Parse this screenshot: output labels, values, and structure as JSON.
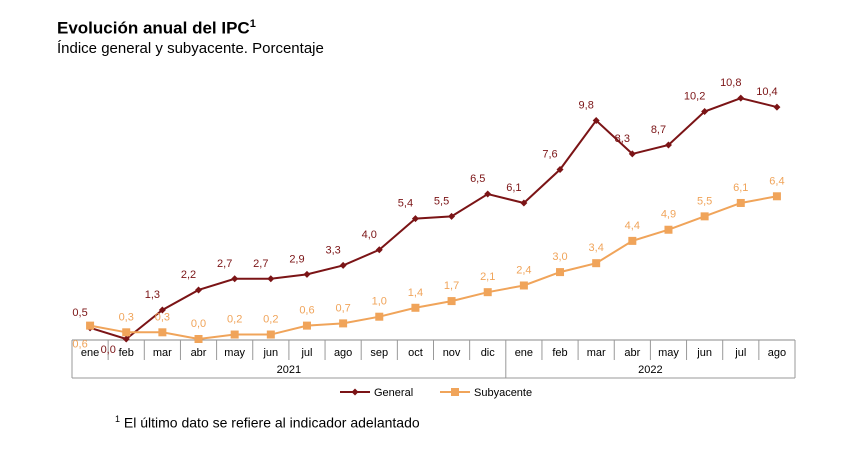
{
  "title": "Evolución anual del IPC",
  "title_sup": "1",
  "subtitle": "Índice general y subyacente. Porcentaje",
  "footnote_mark": "1",
  "footnote": "El último dato se refiere al indicador adelantado",
  "chart_data": {
    "type": "line",
    "categories": [
      "ene",
      "feb",
      "mar",
      "abr",
      "may",
      "jun",
      "jul",
      "ago",
      "sep",
      "oct",
      "nov",
      "dic",
      "ene",
      "feb",
      "mar",
      "abr",
      "may",
      "jun",
      "jul",
      "ago"
    ],
    "years": [
      {
        "label": "2021",
        "start": 0,
        "end": 11
      },
      {
        "label": "2022",
        "start": 12,
        "end": 19
      }
    ],
    "ylim": [
      0,
      11
    ],
    "grid": false,
    "legend": "bottom",
    "series": [
      {
        "name": "General",
        "color": "#7b1416",
        "marker": "diamond",
        "values": [
          0.5,
          0.0,
          1.3,
          2.2,
          2.7,
          2.7,
          2.9,
          3.3,
          4.0,
          5.4,
          5.5,
          6.5,
          6.1,
          7.6,
          9.8,
          8.3,
          8.7,
          10.2,
          10.8,
          10.4
        ]
      },
      {
        "name": "Subyacente",
        "color": "#f0a45a",
        "marker": "square",
        "values": [
          0.6,
          0.3,
          0.3,
          0.0,
          0.2,
          0.2,
          0.6,
          0.7,
          1.0,
          1.4,
          1.7,
          2.1,
          2.4,
          3.0,
          3.4,
          4.4,
          4.9,
          5.5,
          6.1,
          6.4
        ]
      }
    ]
  }
}
